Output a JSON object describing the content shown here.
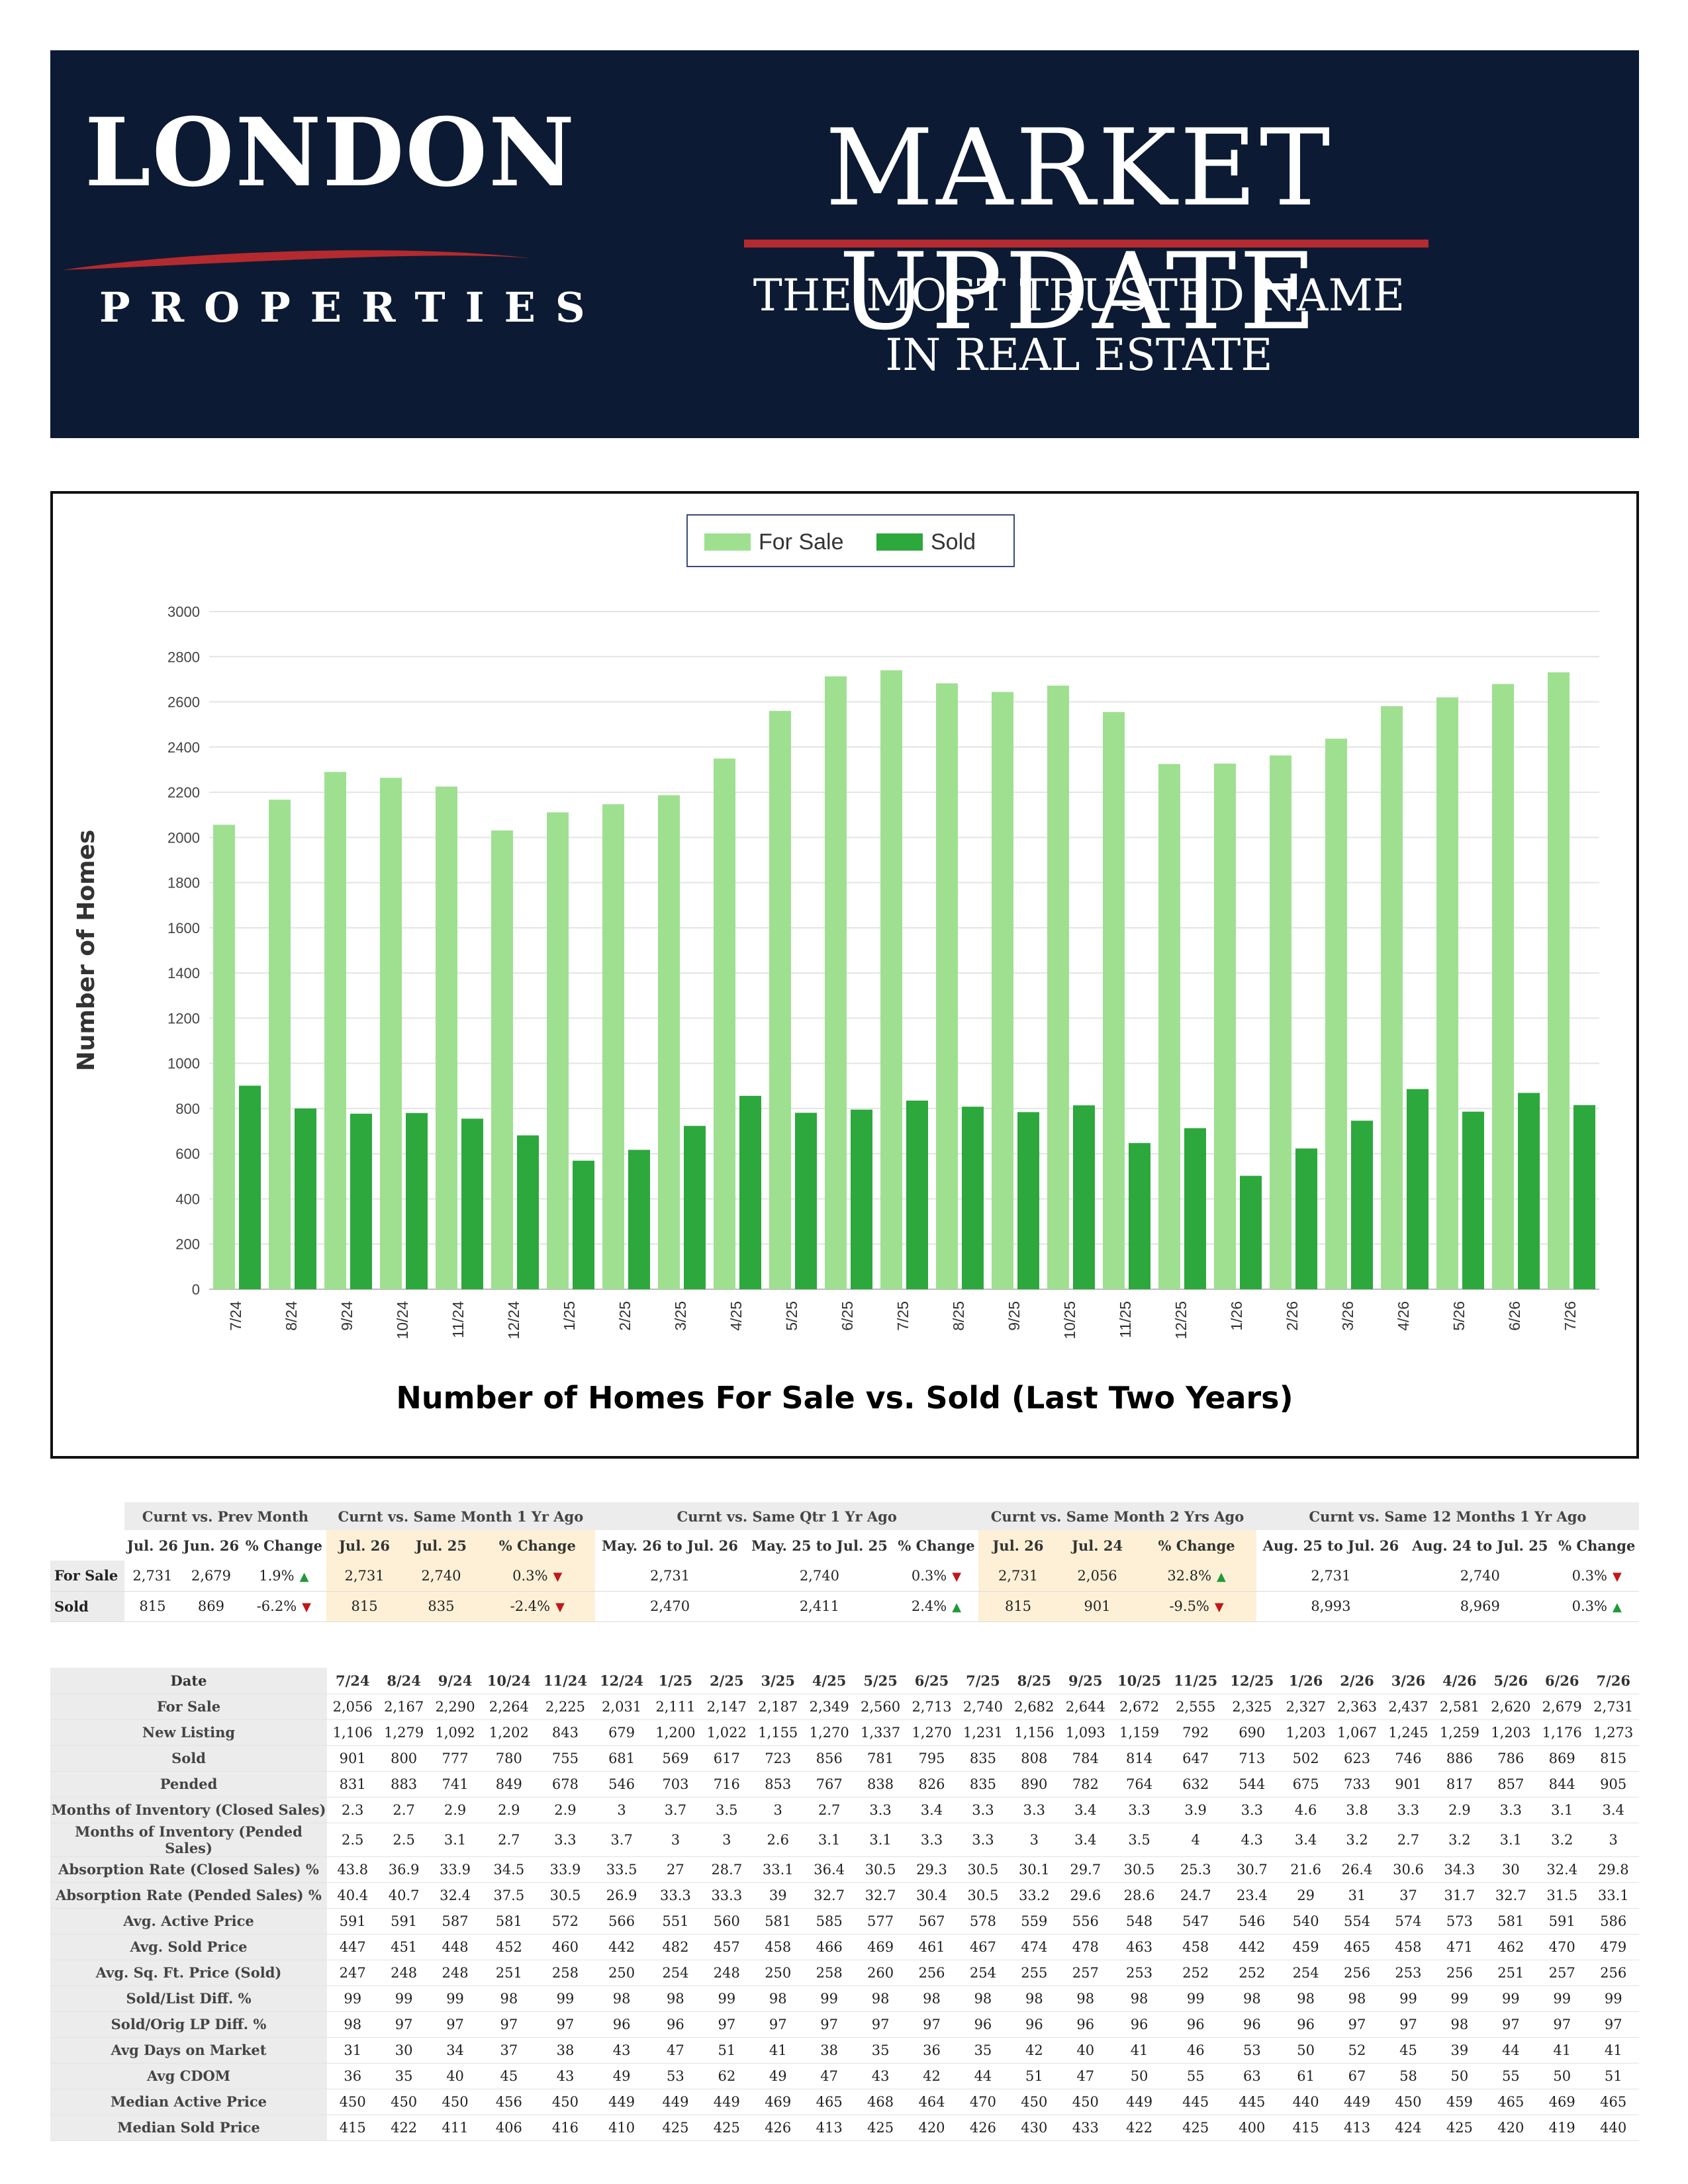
{
  "header": {
    "logo_name": "LONDON",
    "logo_sub": "PROPERTIES",
    "title": "MARKET UPDATE",
    "tagline_1": "THE MOST TRUSTED NAME",
    "tagline_2": "IN REAL ESTATE"
  },
  "colors": {
    "banner": "#0c1b33",
    "accent_red": "#b52a2e",
    "for_sale": "#9ee090",
    "sold": "#2ca83c"
  },
  "chart_data": {
    "type": "bar",
    "title": "Number of Homes For Sale vs. Sold (Last Two Years)",
    "xlabel": "",
    "ylabel": "Number of Homes",
    "ylim": [
      0,
      3000
    ],
    "yticks": [
      0,
      200,
      400,
      600,
      800,
      1000,
      1200,
      1400,
      1600,
      1800,
      2000,
      2200,
      2400,
      2600,
      2800,
      3000
    ],
    "grid": true,
    "legend_position": "top-center",
    "categories": [
      "7/24",
      "8/24",
      "9/24",
      "10/24",
      "11/24",
      "12/24",
      "1/25",
      "2/25",
      "3/25",
      "4/25",
      "5/25",
      "6/25",
      "7/25",
      "8/25",
      "9/25",
      "10/25",
      "11/25",
      "12/25",
      "1/26",
      "2/26",
      "3/26",
      "4/26",
      "5/26",
      "6/26",
      "7/26"
    ],
    "series": [
      {
        "name": "For Sale",
        "color": "#9ee090",
        "values": [
          2056,
          2167,
          2290,
          2264,
          2225,
          2031,
          2111,
          2147,
          2187,
          2349,
          2560,
          2713,
          2740,
          2682,
          2644,
          2672,
          2555,
          2325,
          2327,
          2363,
          2437,
          2581,
          2620,
          2679,
          2731
        ]
      },
      {
        "name": "Sold",
        "color": "#2ca83c",
        "values": [
          901,
          800,
          777,
          780,
          755,
          681,
          569,
          617,
          723,
          856,
          781,
          795,
          835,
          808,
          784,
          814,
          647,
          713,
          502,
          623,
          746,
          886,
          786,
          869,
          815
        ]
      }
    ]
  },
  "summary": {
    "groups": [
      "Curnt vs. Prev Month",
      "Curnt vs. Same Month 1 Yr Ago",
      "Curnt vs. Same Qtr 1 Yr Ago",
      "Curnt vs. Same Month 2 Yrs Ago",
      "Curnt vs. Same 12 Months 1 Yr Ago"
    ],
    "headers": [
      "Jul. 26",
      "Jun. 26",
      "% Change",
      "Jul. 26",
      "Jul. 25",
      "% Change",
      "May. 26 to Jul. 26",
      "May. 25 to Jul. 25",
      "% Change",
      "Jul. 26",
      "Jul. 24",
      "% Change",
      "Aug. 25 to Jul. 26",
      "Aug. 24 to Jul. 25",
      "% Change"
    ],
    "rows": [
      {
        "label": "For Sale",
        "cells": [
          "2,731",
          "2,679",
          "1.9%",
          "2,731",
          "2,740",
          "0.3%",
          "2,731",
          "2,740",
          "0.3%",
          "2,731",
          "2,056",
          "32.8%",
          "2,731",
          "2,740",
          "0.3%"
        ],
        "dirs": [
          "up",
          "down",
          "down",
          "up",
          "down"
        ]
      },
      {
        "label": "Sold",
        "cells": [
          "815",
          "869",
          "-6.2%",
          "815",
          "835",
          "-2.4%",
          "2,470",
          "2,411",
          "2.4%",
          "815",
          "901",
          "-9.5%",
          "8,993",
          "8,969",
          "0.3%"
        ],
        "dirs": [
          "down",
          "down",
          "up",
          "down",
          "up"
        ]
      }
    ]
  },
  "stats": {
    "date_label": "Date",
    "months": [
      "7/24",
      "8/24",
      "9/24",
      "10/24",
      "11/24",
      "12/24",
      "1/25",
      "2/25",
      "3/25",
      "4/25",
      "5/25",
      "6/25",
      "7/25",
      "8/25",
      "9/25",
      "10/25",
      "11/25",
      "12/25",
      "1/26",
      "2/26",
      "3/26",
      "4/26",
      "5/26",
      "6/26",
      "7/26"
    ],
    "rows": [
      {
        "label": "For Sale",
        "values": [
          "2,056",
          "2,167",
          "2,290",
          "2,264",
          "2,225",
          "2,031",
          "2,111",
          "2,147",
          "2,187",
          "2,349",
          "2,560",
          "2,713",
          "2,740",
          "2,682",
          "2,644",
          "2,672",
          "2,555",
          "2,325",
          "2,327",
          "2,363",
          "2,437",
          "2,581",
          "2,620",
          "2,679",
          "2,731"
        ]
      },
      {
        "label": "New Listing",
        "values": [
          "1,106",
          "1,279",
          "1,092",
          "1,202",
          "843",
          "679",
          "1,200",
          "1,022",
          "1,155",
          "1,270",
          "1,337",
          "1,270",
          "1,231",
          "1,156",
          "1,093",
          "1,159",
          "792",
          "690",
          "1,203",
          "1,067",
          "1,245",
          "1,259",
          "1,203",
          "1,176",
          "1,273"
        ]
      },
      {
        "label": "Sold",
        "values": [
          "901",
          "800",
          "777",
          "780",
          "755",
          "681",
          "569",
          "617",
          "723",
          "856",
          "781",
          "795",
          "835",
          "808",
          "784",
          "814",
          "647",
          "713",
          "502",
          "623",
          "746",
          "886",
          "786",
          "869",
          "815"
        ]
      },
      {
        "label": "Pended",
        "values": [
          "831",
          "883",
          "741",
          "849",
          "678",
          "546",
          "703",
          "716",
          "853",
          "767",
          "838",
          "826",
          "835",
          "890",
          "782",
          "764",
          "632",
          "544",
          "675",
          "733",
          "901",
          "817",
          "857",
          "844",
          "905"
        ]
      },
      {
        "label": "Months of Inventory (Closed Sales)",
        "values": [
          "2.3",
          "2.7",
          "2.9",
          "2.9",
          "2.9",
          "3",
          "3.7",
          "3.5",
          "3",
          "2.7",
          "3.3",
          "3.4",
          "3.3",
          "3.3",
          "3.4",
          "3.3",
          "3.9",
          "3.3",
          "4.6",
          "3.8",
          "3.3",
          "2.9",
          "3.3",
          "3.1",
          "3.4"
        ]
      },
      {
        "label": "Months of Inventory (Pended Sales)",
        "values": [
          "2.5",
          "2.5",
          "3.1",
          "2.7",
          "3.3",
          "3.7",
          "3",
          "3",
          "2.6",
          "3.1",
          "3.1",
          "3.3",
          "3.3",
          "3",
          "3.4",
          "3.5",
          "4",
          "4.3",
          "3.4",
          "3.2",
          "2.7",
          "3.2",
          "3.1",
          "3.2",
          "3"
        ]
      },
      {
        "label": "Absorption Rate (Closed Sales) %",
        "values": [
          "43.8",
          "36.9",
          "33.9",
          "34.5",
          "33.9",
          "33.5",
          "27",
          "28.7",
          "33.1",
          "36.4",
          "30.5",
          "29.3",
          "30.5",
          "30.1",
          "29.7",
          "30.5",
          "25.3",
          "30.7",
          "21.6",
          "26.4",
          "30.6",
          "34.3",
          "30",
          "32.4",
          "29.8"
        ]
      },
      {
        "label": "Absorption Rate (Pended Sales) %",
        "values": [
          "40.4",
          "40.7",
          "32.4",
          "37.5",
          "30.5",
          "26.9",
          "33.3",
          "33.3",
          "39",
          "32.7",
          "32.7",
          "30.4",
          "30.5",
          "33.2",
          "29.6",
          "28.6",
          "24.7",
          "23.4",
          "29",
          "31",
          "37",
          "31.7",
          "32.7",
          "31.5",
          "33.1"
        ]
      },
      {
        "label": "Avg. Active Price",
        "values": [
          "591",
          "591",
          "587",
          "581",
          "572",
          "566",
          "551",
          "560",
          "581",
          "585",
          "577",
          "567",
          "578",
          "559",
          "556",
          "548",
          "547",
          "546",
          "540",
          "554",
          "574",
          "573",
          "581",
          "591",
          "586"
        ]
      },
      {
        "label": "Avg. Sold Price",
        "values": [
          "447",
          "451",
          "448",
          "452",
          "460",
          "442",
          "482",
          "457",
          "458",
          "466",
          "469",
          "461",
          "467",
          "474",
          "478",
          "463",
          "458",
          "442",
          "459",
          "465",
          "458",
          "471",
          "462",
          "470",
          "479"
        ]
      },
      {
        "label": "Avg. Sq. Ft. Price (Sold)",
        "values": [
          "247",
          "248",
          "248",
          "251",
          "258",
          "250",
          "254",
          "248",
          "250",
          "258",
          "260",
          "256",
          "254",
          "255",
          "257",
          "253",
          "252",
          "252",
          "254",
          "256",
          "253",
          "256",
          "251",
          "257",
          "256"
        ]
      },
      {
        "label": "Sold/List Diff. %",
        "values": [
          "99",
          "99",
          "99",
          "98",
          "99",
          "98",
          "98",
          "99",
          "98",
          "99",
          "98",
          "98",
          "98",
          "98",
          "98",
          "98",
          "99",
          "98",
          "98",
          "98",
          "99",
          "99",
          "99",
          "99",
          "99"
        ]
      },
      {
        "label": "Sold/Orig LP Diff. %",
        "values": [
          "98",
          "97",
          "97",
          "97",
          "97",
          "96",
          "96",
          "97",
          "97",
          "97",
          "97",
          "97",
          "96",
          "96",
          "96",
          "96",
          "96",
          "96",
          "96",
          "97",
          "97",
          "98",
          "97",
          "97",
          "97"
        ]
      },
      {
        "label": "Avg Days on Market",
        "values": [
          "31",
          "30",
          "34",
          "37",
          "38",
          "43",
          "47",
          "51",
          "41",
          "38",
          "35",
          "36",
          "35",
          "42",
          "40",
          "41",
          "46",
          "53",
          "50",
          "52",
          "45",
          "39",
          "44",
          "41",
          "41"
        ]
      },
      {
        "label": "Avg CDOM",
        "values": [
          "36",
          "35",
          "40",
          "45",
          "43",
          "49",
          "53",
          "62",
          "49",
          "47",
          "43",
          "42",
          "44",
          "51",
          "47",
          "50",
          "55",
          "63",
          "61",
          "67",
          "58",
          "50",
          "55",
          "50",
          "51"
        ]
      },
      {
        "label": "Median Active Price",
        "values": [
          "450",
          "450",
          "450",
          "456",
          "450",
          "449",
          "449",
          "449",
          "469",
          "465",
          "468",
          "464",
          "470",
          "450",
          "450",
          "449",
          "445",
          "445",
          "440",
          "449",
          "450",
          "459",
          "465",
          "469",
          "465"
        ]
      },
      {
        "label": "Median Sold Price",
        "values": [
          "415",
          "422",
          "411",
          "406",
          "416",
          "410",
          "425",
          "425",
          "426",
          "413",
          "425",
          "420",
          "426",
          "430",
          "433",
          "422",
          "425",
          "400",
          "415",
          "413",
          "424",
          "425",
          "420",
          "419",
          "440"
        ]
      }
    ]
  }
}
